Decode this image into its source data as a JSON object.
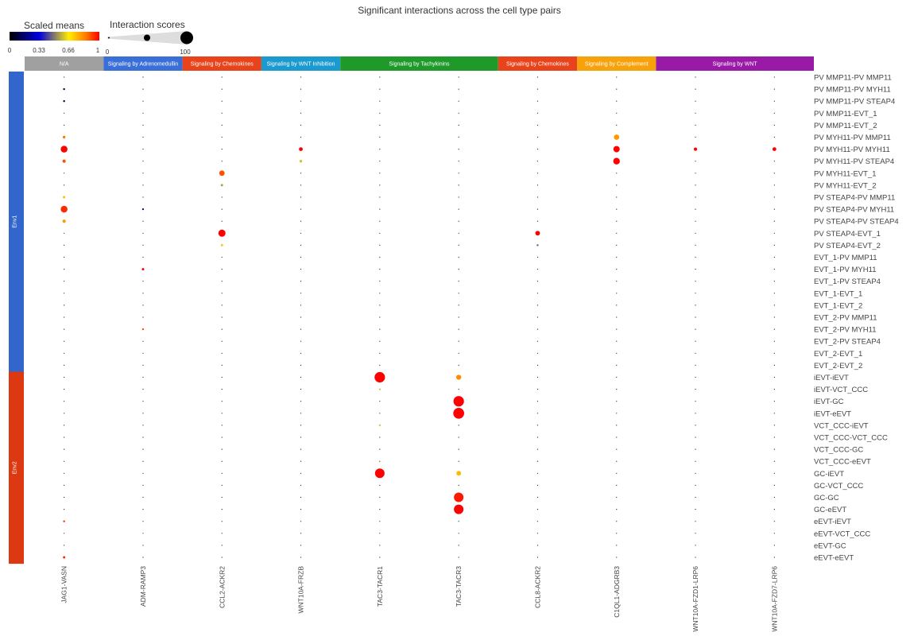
{
  "chart_data": {
    "type": "scatter",
    "title": "Significant interactions across the cell type pairs",
    "legend": {
      "color_title": "Scaled means",
      "color_ticks": [
        "0",
        "0.33",
        "0.66",
        "1"
      ],
      "size_title": "Interaction scores",
      "size_ticks": [
        "0",
        "100"
      ]
    },
    "columns": [
      "JAG1-VASN",
      "ADM-RAMP3",
      "CCL2-ACKR2",
      "WNT10A-FRZB",
      "TAC3-TACR1",
      "TAC3-TACR3",
      "CCL8-ACKR2",
      "C1QL1-ADGRB3",
      "WNT10A-FZD1-LRP6",
      "WNT10A-FZD7-LRP6"
    ],
    "pathways": [
      {
        "label": "N/A",
        "span": 1,
        "color": "#a0a0a0"
      },
      {
        "label": "Signaling by Adrenomedullin",
        "span": 1,
        "color": "#3a6fd8"
      },
      {
        "label": "Signaling by Chemokines",
        "span": 1,
        "color": "#e8431a"
      },
      {
        "label": "Signaling by WNT Inhibition",
        "span": 1,
        "color": "#1b9ad0"
      },
      {
        "label": "Signaling by Tachykinins",
        "span": 2,
        "color": "#1f9a2a"
      },
      {
        "label": "Signaling by Chemokines",
        "span": 1,
        "color": "#e8431a"
      },
      {
        "label": "Signaling by Complement",
        "span": 1,
        "color": "#f7a20a"
      },
      {
        "label": "Signaling by WNT",
        "span": 2,
        "color": "#9a1aa8"
      }
    ],
    "rows": [
      "PV MMP11-PV MMP11",
      "PV MMP11-PV MYH11",
      "PV MMP11-PV STEAP4",
      "PV MMP11-EVT_1",
      "PV MMP11-EVT_2",
      "PV MYH11-PV MMP11",
      "PV MYH11-PV MYH11",
      "PV MYH11-PV STEAP4",
      "PV MYH11-EVT_1",
      "PV MYH11-EVT_2",
      "PV STEAP4-PV MMP11",
      "PV STEAP4-PV MYH11",
      "PV STEAP4-PV STEAP4",
      "PV STEAP4-EVT_1",
      "PV STEAP4-EVT_2",
      "EVT_1-PV MMP11",
      "EVT_1-PV MYH11",
      "EVT_1-PV STEAP4",
      "EVT_1-EVT_1",
      "EVT_1-EVT_2",
      "EVT_2-PV MMP11",
      "EVT_2-PV MYH11",
      "EVT_2-PV STEAP4",
      "EVT_2-EVT_1",
      "EVT_2-EVT_2",
      "iEVT-iEVT",
      "iEVT-VCT_CCC",
      "iEVT-GC",
      "iEVT-eEVT",
      "VCT_CCC-iEVT",
      "VCT_CCC-VCT_CCC",
      "VCT_CCC-GC",
      "VCT_CCC-eEVT",
      "GC-iEVT",
      "GC-VCT_CCC",
      "GC-GC",
      "GC-eEVT",
      "eEVT-iEVT",
      "eEVT-VCT_CCC",
      "eEVT-GC",
      "eEVT-eEVT"
    ],
    "row_groups": [
      {
        "label": "Env1",
        "span": 25,
        "color": "#3366cc"
      },
      {
        "label": "Env2",
        "span": 16,
        "color": "#dc3912"
      }
    ],
    "points": [
      {
        "row": 1,
        "col": 0,
        "scaled_mean": 0.1,
        "score": 2
      },
      {
        "row": 2,
        "col": 0,
        "scaled_mean": 0.05,
        "score": 2
      },
      {
        "row": 5,
        "col": 0,
        "scaled_mean": 0.85,
        "score": 4
      },
      {
        "row": 6,
        "col": 0,
        "scaled_mean": 1.0,
        "score": 25
      },
      {
        "row": 7,
        "col": 0,
        "scaled_mean": 0.9,
        "score": 6
      },
      {
        "row": 10,
        "col": 0,
        "scaled_mean": 0.75,
        "score": 3
      },
      {
        "row": 11,
        "col": 0,
        "scaled_mean": 0.95,
        "score": 25
      },
      {
        "row": 12,
        "col": 0,
        "scaled_mean": 0.8,
        "score": 6
      },
      {
        "row": 37,
        "col": 0,
        "scaled_mean": 0.95,
        "score": 2
      },
      {
        "row": 40,
        "col": 0,
        "scaled_mean": 0.95,
        "score": 3
      },
      {
        "row": 16,
        "col": 1,
        "scaled_mean": 1.0,
        "score": 3
      },
      {
        "row": 21,
        "col": 1,
        "scaled_mean": 0.9,
        "score": 2
      },
      {
        "row": 11,
        "col": 1,
        "scaled_mean": 0.15,
        "score": 1
      },
      {
        "row": 8,
        "col": 2,
        "scaled_mean": 0.9,
        "score": 16
      },
      {
        "row": 9,
        "col": 2,
        "scaled_mean": 0.55,
        "score": 3
      },
      {
        "row": 13,
        "col": 2,
        "scaled_mean": 1.0,
        "score": 28
      },
      {
        "row": 14,
        "col": 2,
        "scaled_mean": 0.62,
        "score": 3
      },
      {
        "row": 6,
        "col": 3,
        "scaled_mean": 1.0,
        "score": 8
      },
      {
        "row": 7,
        "col": 3,
        "scaled_mean": 0.6,
        "score": 4
      },
      {
        "row": 25,
        "col": 4,
        "scaled_mean": 1.0,
        "score": 60
      },
      {
        "row": 33,
        "col": 4,
        "scaled_mean": 1.0,
        "score": 50
      },
      {
        "row": 26,
        "col": 4,
        "scaled_mean": 0.6,
        "score": 1
      },
      {
        "row": 29,
        "col": 4,
        "scaled_mean": 0.6,
        "score": 1
      },
      {
        "row": 25,
        "col": 5,
        "scaled_mean": 0.82,
        "score": 14
      },
      {
        "row": 27,
        "col": 5,
        "scaled_mean": 1.0,
        "score": 60
      },
      {
        "row": 28,
        "col": 5,
        "scaled_mean": 1.0,
        "score": 65
      },
      {
        "row": 33,
        "col": 5,
        "scaled_mean": 0.75,
        "score": 12
      },
      {
        "row": 35,
        "col": 5,
        "scaled_mean": 0.97,
        "score": 50
      },
      {
        "row": 36,
        "col": 5,
        "scaled_mean": 1.0,
        "score": 50
      },
      {
        "row": 13,
        "col": 6,
        "scaled_mean": 1.0,
        "score": 12
      },
      {
        "row": 14,
        "col": 6,
        "scaled_mean": 0.45,
        "score": 2
      },
      {
        "row": 5,
        "col": 7,
        "scaled_mean": 0.8,
        "score": 16
      },
      {
        "row": 6,
        "col": 7,
        "scaled_mean": 1.0,
        "score": 22
      },
      {
        "row": 7,
        "col": 7,
        "scaled_mean": 1.0,
        "score": 24
      },
      {
        "row": 6,
        "col": 8,
        "scaled_mean": 1.0,
        "score": 6
      },
      {
        "row": 6,
        "col": 9,
        "scaled_mean": 1.0,
        "score": 8
      }
    ]
  }
}
